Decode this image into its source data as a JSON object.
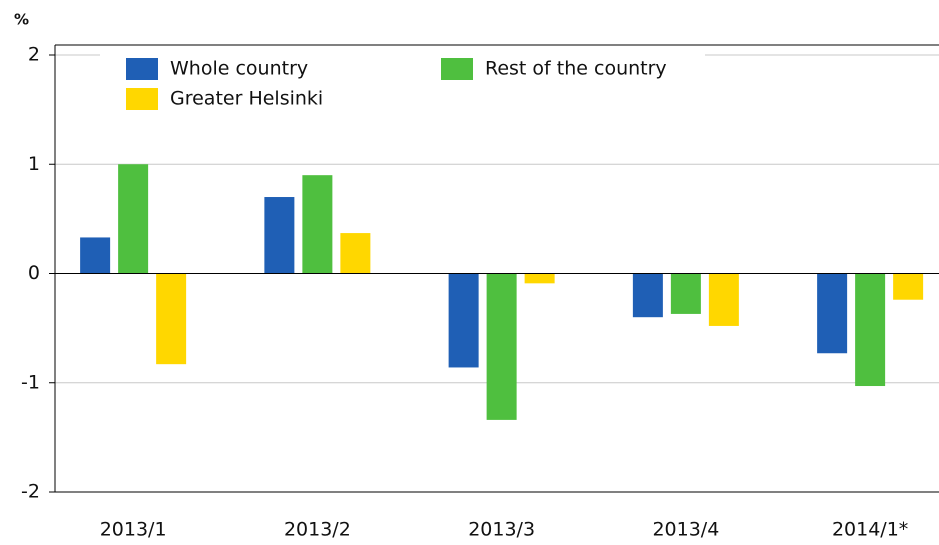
{
  "chart_data": {
    "type": "bar",
    "y_label": "%",
    "categories": [
      "2013/1",
      "2013/2",
      "2013/3",
      "2013/4",
      "2014/1*"
    ],
    "series": [
      {
        "name": "Whole country",
        "color": "#1f5fb5",
        "values": [
          0.33,
          0.7,
          -0.86,
          -0.4,
          -0.73
        ]
      },
      {
        "name": "Rest of the country",
        "color": "#4fbf3f",
        "values": [
          1.0,
          0.9,
          -1.34,
          -0.37,
          -1.03
        ]
      },
      {
        "name": "Greater Helsinki",
        "color": "#ffd700",
        "values": [
          -0.83,
          0.37,
          -0.09,
          -0.48,
          -0.24
        ]
      }
    ],
    "ylim": [
      -2,
      2
    ],
    "yticks": [
      -2,
      -1,
      0,
      1,
      2
    ],
    "grid": true,
    "legend": "upper left"
  }
}
